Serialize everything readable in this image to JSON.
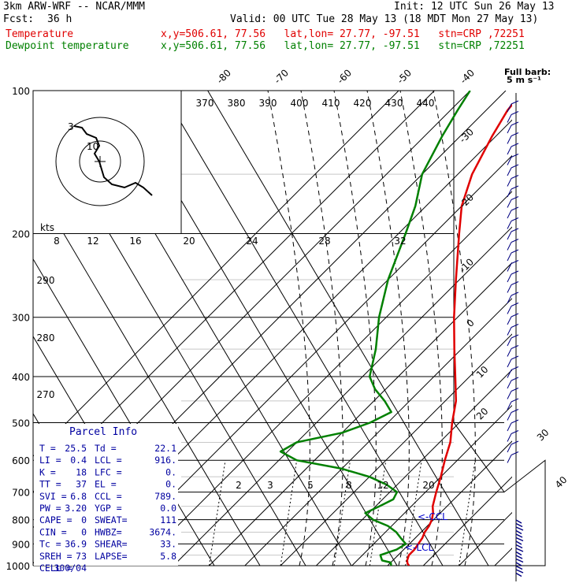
{
  "header": {
    "model": "3km ARW-WRF -- NCAR/MMM",
    "fcst_label": "Fcst:",
    "fcst_value": "36 h",
    "init": "Init: 12 UTC Sun 26 May 13",
    "valid": "Valid: 00 UTC Tue 28 May 13 (18 MDT Mon 27 May 13)",
    "temp_label": "Temperature",
    "temp_loc": "x,y=506.61, 77.56   lat,lon= 27.77, -97.51   stn=CRP ,72251",
    "dew_label": "Dewpoint temperature",
    "dew_loc": "x,y=506.61, 77.56   lat,lon= 27.77, -97.51   stn=CRP ,72251"
  },
  "colors": {
    "temperature": "#e00000",
    "dewpoint": "#008000",
    "wind": "#000080",
    "parcel_info": "#0000a0"
  },
  "chart_data": {
    "type": "line",
    "title": "",
    "xlabel": "",
    "ylabel": "",
    "ylim": [
      1000,
      100
    ],
    "pressure_levels": [
      "100",
      "200",
      "300",
      "400",
      "500",
      "600",
      "700",
      "800",
      "900",
      "1000"
    ],
    "isotherm_labels": [
      "-80",
      "-70",
      "-60",
      "-50",
      "-40",
      "-30",
      "-20",
      "-10",
      "0",
      "10",
      "20",
      "30",
      "40"
    ],
    "theta_labels": [
      "370",
      "380",
      "390",
      "400",
      "410",
      "420",
      "430",
      "440"
    ],
    "hodograph_labels": [
      "kts",
      "8",
      "12",
      "16",
      "20",
      "24",
      "28",
      "32"
    ],
    "height_labels": [
      "290",
      "280",
      "270"
    ],
    "mixing_ratio_labels": [
      "2",
      "3",
      "5",
      "8",
      "12",
      "20"
    ],
    "level_markers": [
      "<-CCL",
      "<-LCL"
    ],
    "full_barb_label": "Full barb:",
    "full_barb_units": "5 m s⁻¹",
    "series": [
      {
        "name": "Temperature",
        "points": [
          [
            1000,
            26
          ],
          [
            990,
            25
          ],
          [
            975,
            24
          ],
          [
            950,
            23
          ],
          [
            925,
            23
          ],
          [
            900,
            22.5
          ],
          [
            875,
            22
          ],
          [
            850,
            21
          ],
          [
            825,
            20.5
          ],
          [
            800,
            19.5
          ],
          [
            775,
            18
          ],
          [
            750,
            16
          ],
          [
            700,
            13
          ],
          [
            650,
            10
          ],
          [
            600,
            6.5
          ],
          [
            550,
            3
          ],
          [
            500,
            -2
          ],
          [
            450,
            -7
          ],
          [
            400,
            -14
          ],
          [
            350,
            -22
          ],
          [
            300,
            -31
          ],
          [
            250,
            -41
          ],
          [
            200,
            -53
          ],
          [
            175,
            -60
          ],
          [
            150,
            -66
          ],
          [
            125,
            -71
          ],
          [
            110,
            -74
          ],
          [
            100,
            -75
          ]
        ]
      },
      {
        "name": "Dewpoint temperature",
        "points": [
          [
            1000,
            21
          ],
          [
            985,
            20
          ],
          [
            975,
            17
          ],
          [
            950,
            15
          ],
          [
            925,
            18
          ],
          [
            900,
            19
          ],
          [
            875,
            16
          ],
          [
            850,
            13
          ],
          [
            825,
            9
          ],
          [
            800,
            3
          ],
          [
            775,
            -1
          ],
          [
            750,
            1
          ],
          [
            725,
            3
          ],
          [
            700,
            2
          ],
          [
            675,
            -3
          ],
          [
            650,
            -10
          ],
          [
            625,
            -20
          ],
          [
            600,
            -35
          ],
          [
            575,
            -42
          ],
          [
            550,
            -40
          ],
          [
            525,
            -30
          ],
          [
            500,
            -25
          ],
          [
            475,
            -22
          ],
          [
            450,
            -27
          ],
          [
            425,
            -33
          ],
          [
            400,
            -38
          ],
          [
            350,
            -44
          ],
          [
            300,
            -52
          ],
          [
            250,
            -60
          ],
          [
            200,
            -68
          ],
          [
            175,
            -73
          ],
          [
            150,
            -80
          ],
          [
            125,
            -85
          ],
          [
            110,
            -88
          ],
          [
            100,
            -90
          ]
        ]
      }
    ]
  },
  "parcel_info": {
    "title": "Parcel Info",
    "rows": [
      [
        "T  =",
        "25.5",
        "Td =",
        "22.1"
      ],
      [
        "LI =",
        "0.4",
        "LCL =",
        "916."
      ],
      [
        "K  =",
        "18",
        "LFC =",
        "0."
      ],
      [
        "TT =",
        "37",
        "EL  =",
        "0."
      ],
      [
        "SVI =",
        "6.8",
        "CCL =",
        "789."
      ],
      [
        "PW =",
        "3.20",
        "YGP =",
        "0.0"
      ],
      [
        "CAPE =",
        "0",
        "SWEAT=",
        "111"
      ],
      [
        "CIN =",
        "0",
        "HWBZ=",
        "3674."
      ],
      [
        "Tc =",
        "36.9",
        "SHEAR=",
        "33."
      ],
      [
        "SREH =",
        "73",
        "LAPSE=",
        "5.8"
      ],
      [
        "CELL =",
        "300/04",
        "",
        ""
      ]
    ]
  }
}
